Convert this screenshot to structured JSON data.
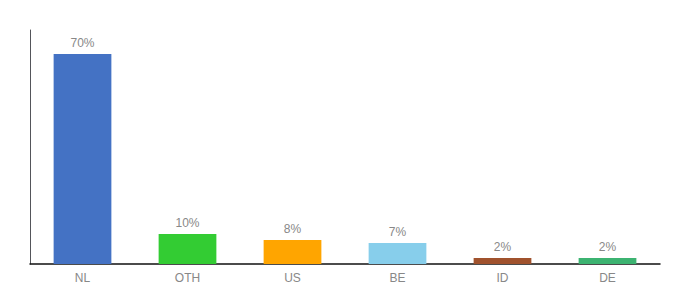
{
  "chart_data": {
    "type": "bar",
    "categories": [
      "NL",
      "OTH",
      "US",
      "BE",
      "ID",
      "DE"
    ],
    "values": [
      70,
      10,
      8,
      7,
      2,
      2
    ],
    "value_labels": [
      "70%",
      "10%",
      "8%",
      "7%",
      "2%",
      "2%"
    ],
    "colors": [
      "#4472C4",
      "#33CC33",
      "#FFA500",
      "#87CEEB",
      "#A0522D",
      "#3CB371"
    ],
    "ylim": [
      0,
      78
    ],
    "grid": false,
    "tick_labels": "x",
    "data_labels": true
  }
}
